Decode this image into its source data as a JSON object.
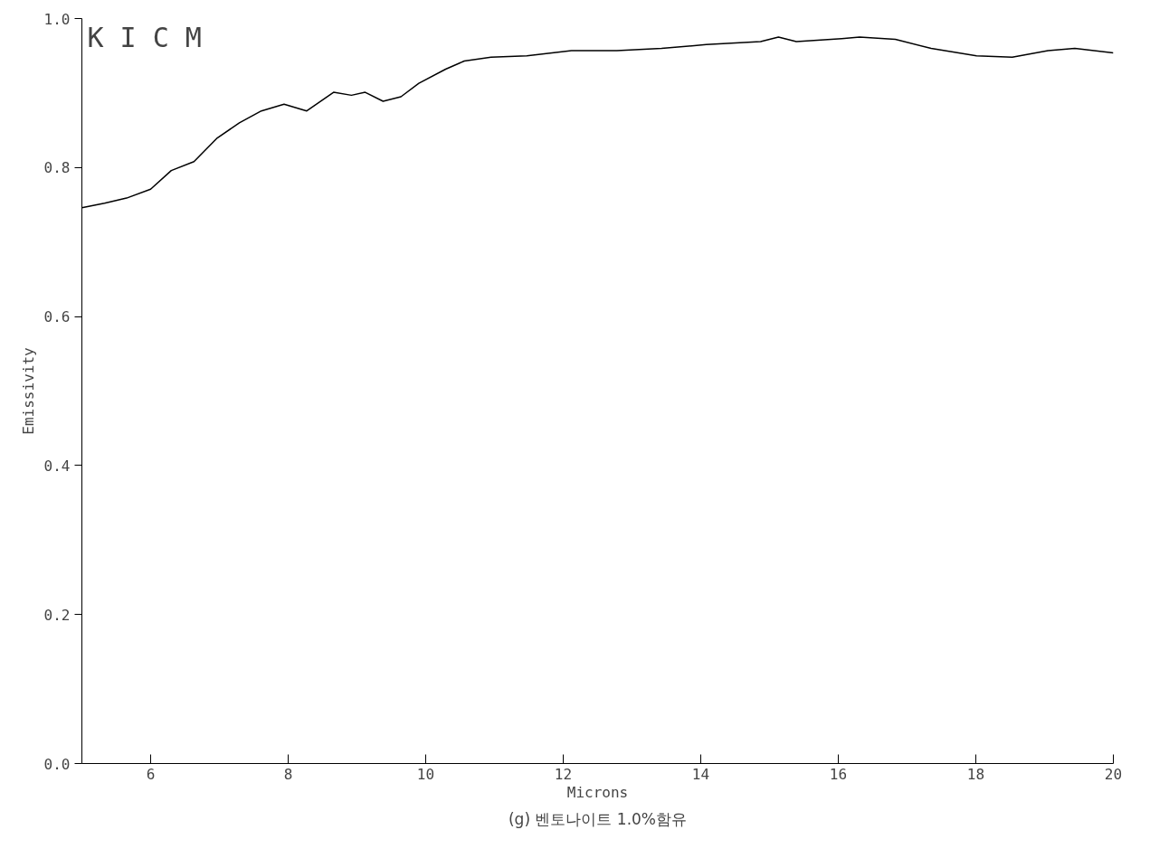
{
  "chart_data": {
    "type": "line",
    "xlabel": "Microns",
    "ylabel": "Emissivity",
    "annotations": [
      "K I C M",
      "(g) 벤토나이트 1.0%함유"
    ],
    "x": [
      5.0,
      5.33,
      5.65,
      6.0,
      6.3,
      6.63,
      6.96,
      7.29,
      7.61,
      7.94,
      8.27,
      8.66,
      8.92,
      9.12,
      9.38,
      9.64,
      9.9,
      10.29,
      10.56,
      10.95,
      11.47,
      12.12,
      12.78,
      13.43,
      14.08,
      14.87,
      15.13,
      15.39,
      16.05,
      16.31,
      16.83,
      17.35,
      18.01,
      18.53,
      19.05,
      19.44,
      20.0
    ],
    "series": [
      {
        "color": "#000000",
        "values": [
          0.746,
          0.752,
          0.759,
          0.771,
          0.796,
          0.808,
          0.839,
          0.86,
          0.876,
          0.885,
          0.876,
          0.901,
          0.897,
          0.901,
          0.889,
          0.895,
          0.913,
          0.932,
          0.943,
          0.948,
          0.95,
          0.957,
          0.957,
          0.96,
          0.965,
          0.969,
          0.975,
          0.969,
          0.973,
          0.975,
          0.972,
          0.96,
          0.95,
          0.948,
          0.957,
          0.96,
          0.954
        ]
      }
    ],
    "xlim": [
      5,
      20
    ],
    "ylim": [
      0,
      1
    ],
    "xticks": [
      6,
      8,
      10,
      12,
      14,
      16,
      18,
      20
    ],
    "yticks": [
      {
        "value": 0,
        "label": "0.0"
      },
      {
        "value": 0.2,
        "label": "0.2"
      },
      {
        "value": 0.4,
        "label": "0.4"
      },
      {
        "value": 0.6,
        "label": "0.6"
      },
      {
        "value": 0.8,
        "label": "0.8"
      },
      {
        "value": 1,
        "label": "1.0"
      }
    ],
    "grid": false,
    "marker": "none",
    "line_style": "solid"
  }
}
